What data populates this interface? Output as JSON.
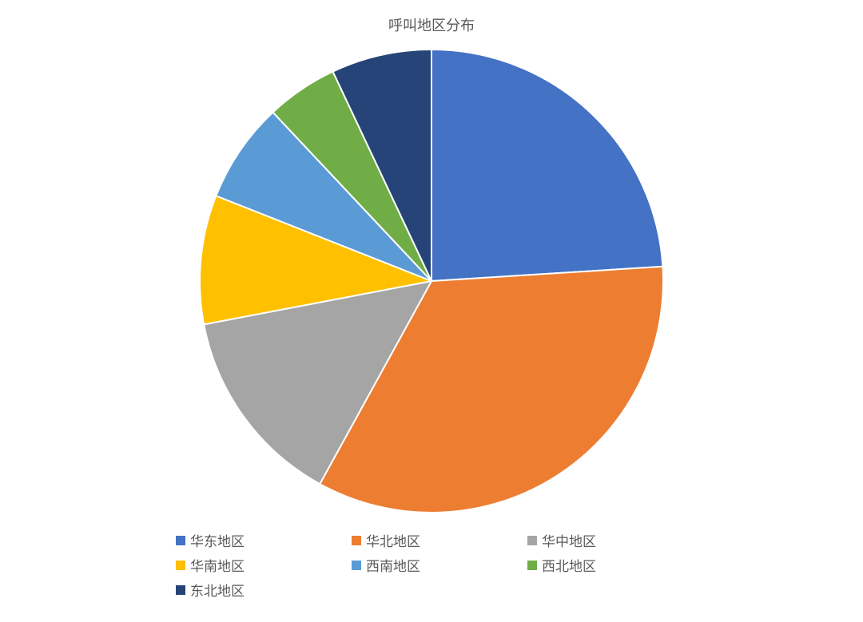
{
  "chart": {
    "type": "pie",
    "title": "呼叫地区分布",
    "title_fontsize": 18,
    "title_color": "#595959",
    "background_color": "#ffffff",
    "slice_border_color": "#ffffff",
    "slice_border_width": 2,
    "radius": 290,
    "start_angle_deg": 0,
    "slices": [
      {
        "label": "华东地区",
        "value": 24,
        "color": "#4472c4"
      },
      {
        "label": "华北地区",
        "value": 34,
        "color": "#ed7d31"
      },
      {
        "label": "华中地区",
        "value": 14,
        "color": "#a5a5a5"
      },
      {
        "label": "华南地区",
        "value": 9,
        "color": "#ffc000"
      },
      {
        "label": "西南地区",
        "value": 7,
        "color": "#5b9bd5"
      },
      {
        "label": "西北地区",
        "value": 5,
        "color": "#70ad47"
      },
      {
        "label": "东北地区",
        "value": 7,
        "color": "#264478"
      }
    ],
    "legend": {
      "position": "bottom",
      "swatch_size": 12,
      "font_size": 17,
      "font_color": "#595959",
      "columns": 4
    }
  }
}
